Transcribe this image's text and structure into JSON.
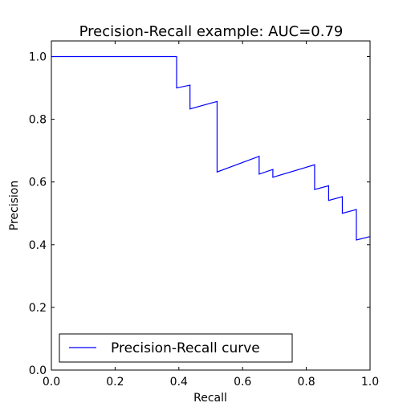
{
  "chart_data": {
    "type": "line",
    "title": "Precision-Recall example: AUC=0.79",
    "xlabel": "Recall",
    "ylabel": "Precision",
    "xlim": [
      0.0,
      1.0
    ],
    "ylim": [
      0.0,
      1.05
    ],
    "xticks": [
      0.0,
      0.2,
      0.4,
      0.6,
      0.8,
      1.0
    ],
    "yticks": [
      0.0,
      0.2,
      0.4,
      0.6,
      0.8,
      1.0
    ],
    "xtick_labels": [
      "0.0",
      "0.2",
      "0.4",
      "0.6",
      "0.8",
      "1.0"
    ],
    "ytick_labels": [
      "0.0",
      "0.2",
      "0.4",
      "0.6",
      "0.8",
      "1.0"
    ],
    "grid": false,
    "legend_position": "lower-left",
    "series": [
      {
        "name": "Precision-Recall curve",
        "color": "#0000ff",
        "x": [
          0.0,
          0.393,
          0.393,
          0.435,
          0.435,
          0.52,
          0.52,
          0.652,
          0.652,
          0.695,
          0.695,
          0.826,
          0.826,
          0.87,
          0.87,
          0.913,
          0.913,
          0.957,
          0.957,
          1.0
        ],
        "y": [
          1.0,
          1.0,
          0.9,
          0.909,
          0.833,
          0.857,
          0.632,
          0.682,
          0.625,
          0.64,
          0.615,
          0.655,
          0.576,
          0.588,
          0.541,
          0.553,
          0.5,
          0.512,
          0.415,
          0.426
        ]
      }
    ]
  }
}
